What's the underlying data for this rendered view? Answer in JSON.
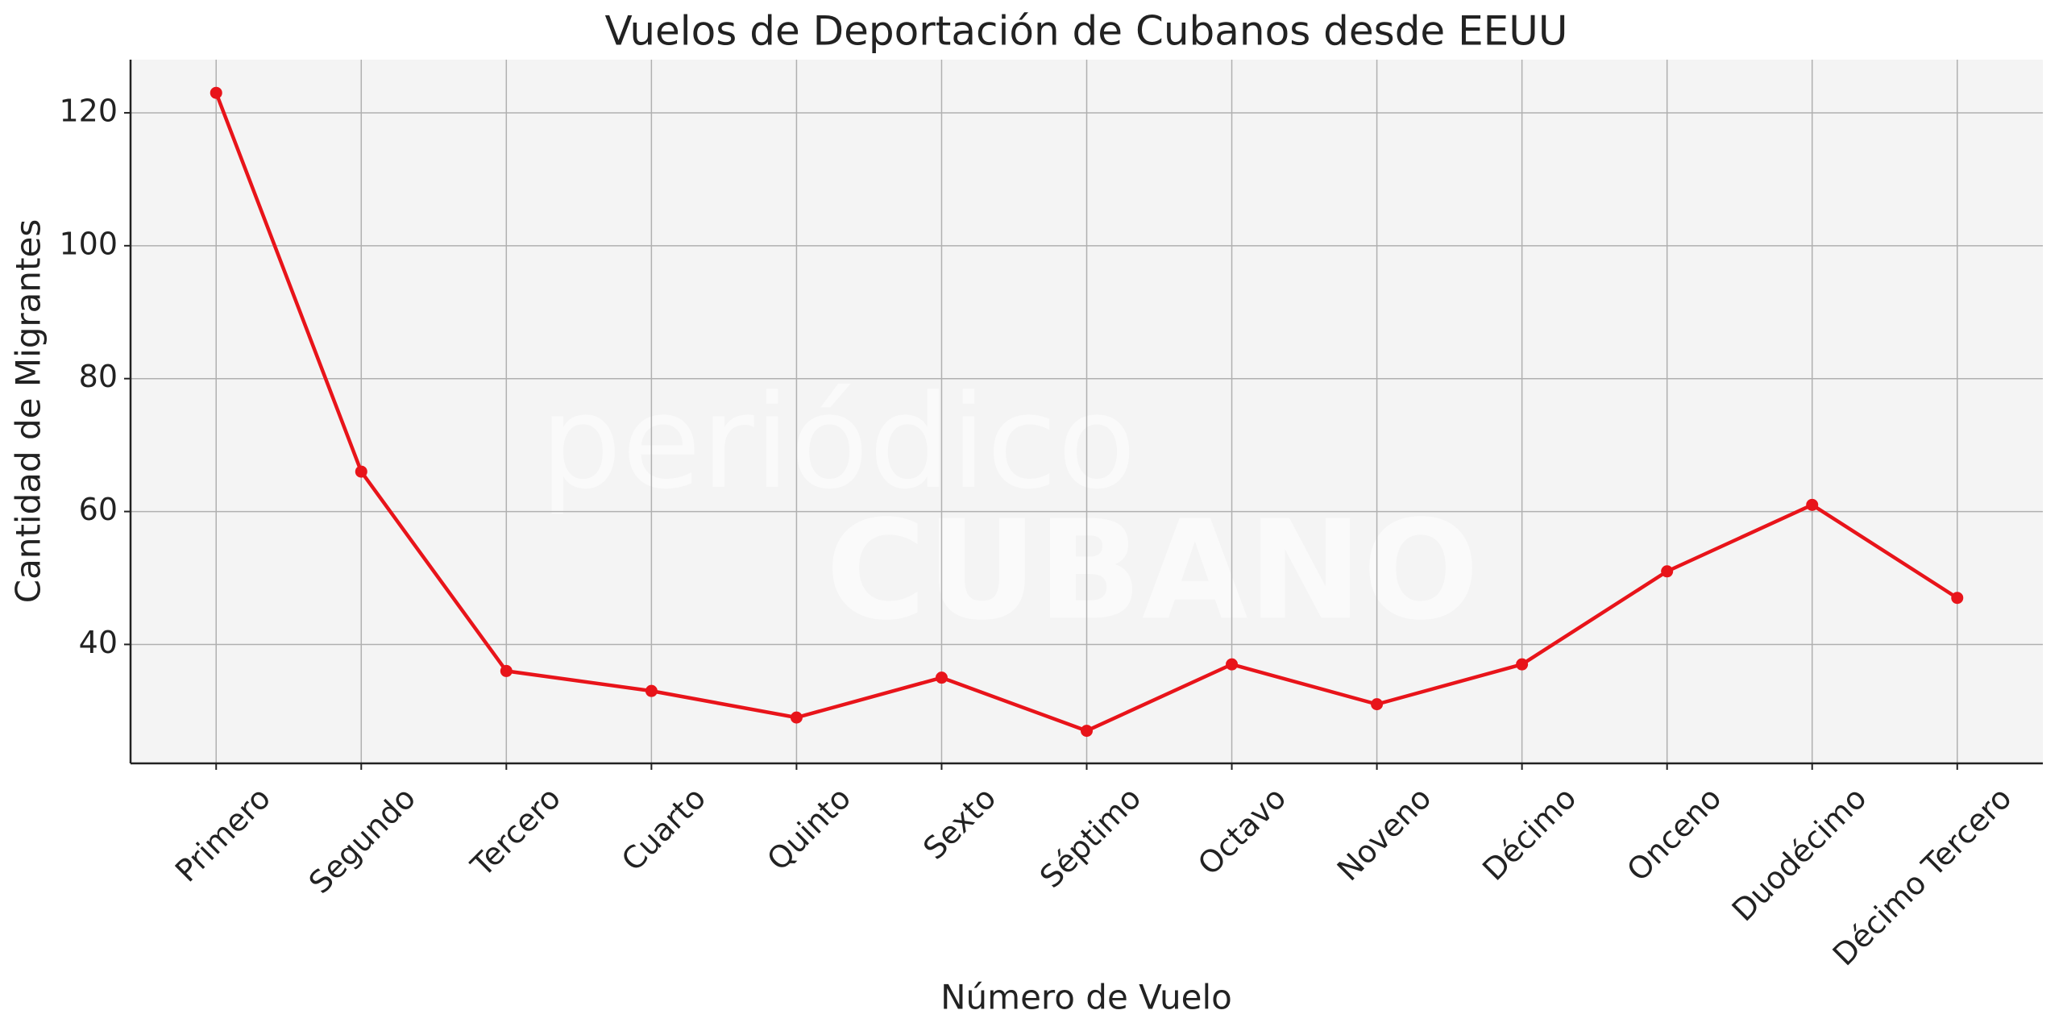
{
  "chart_data": {
    "type": "line",
    "title": "Vuelos de Deportación de Cubanos desde EEUU",
    "xlabel": "Número de Vuelo",
    "ylabel": "Cantidad de Migrantes",
    "watermark": [
      "periódico",
      "CUBANO"
    ],
    "categories": [
      "Primero",
      "Segundo",
      "Tercero",
      "Cuarto",
      "Quinto",
      "Sexto",
      "Séptimo",
      "Octavo",
      "Noveno",
      "Décimo",
      "Onceno",
      "Duodécimo",
      "Décimo Tercero"
    ],
    "series": [
      {
        "name": "Cantidad de Migrantes",
        "color": "#e8141a",
        "values": [
          123,
          66,
          36,
          33,
          29,
          35,
          27,
          37,
          31,
          37,
          51,
          61,
          47
        ]
      }
    ],
    "ylim": [
      22.1,
      128
    ],
    "yticks": [
      40,
      60,
      80,
      100,
      120
    ],
    "grid": true
  }
}
